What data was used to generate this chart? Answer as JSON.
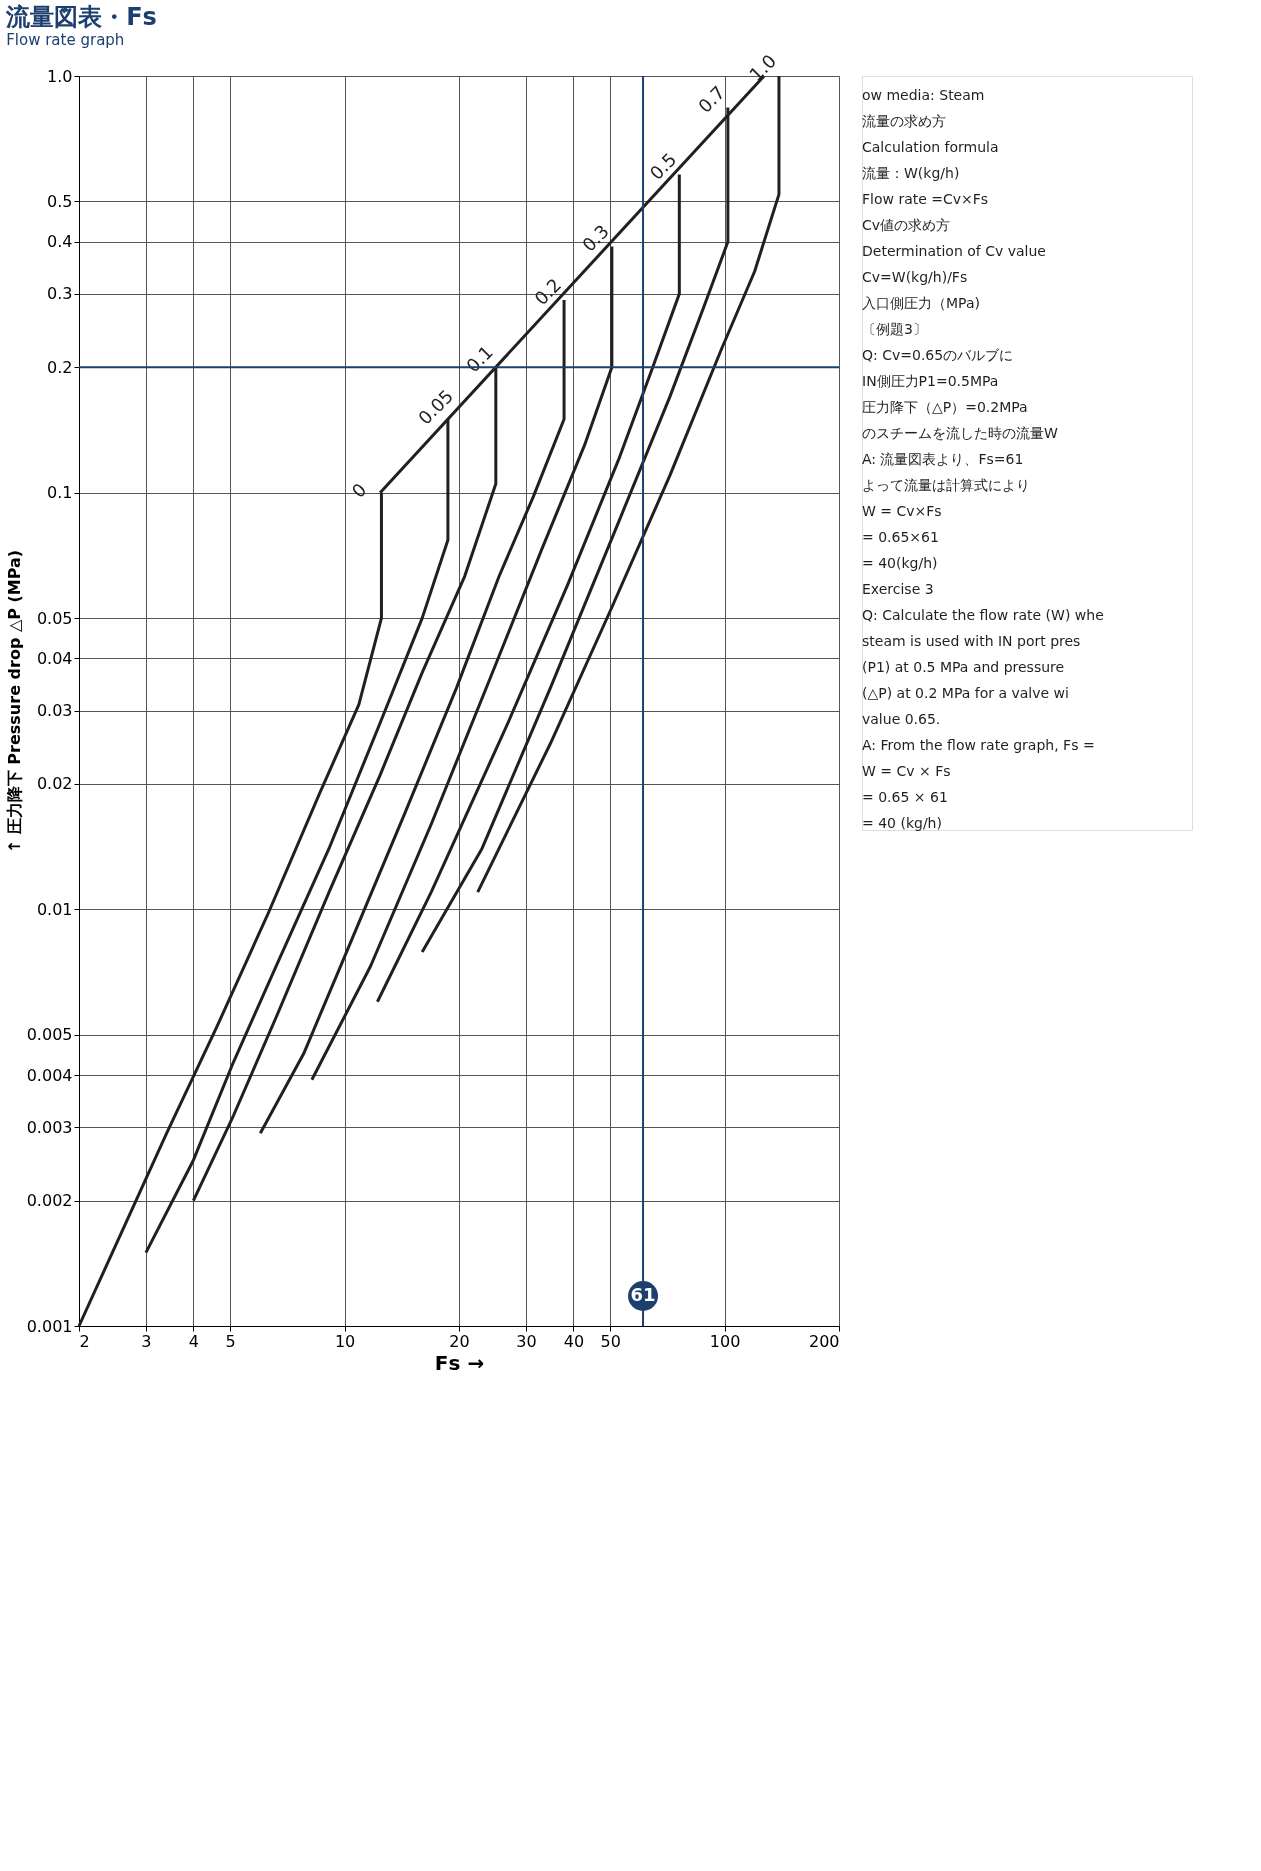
{
  "chart_data": {
    "type": "line",
    "title": "流量図表・Fs",
    "subtitle": "Flow rate graph",
    "xlabel": "Fs →",
    "ylabel": "↑ 圧力降下 Pressure drop △P (MPa)",
    "xlim": [
      2,
      200
    ],
    "ylim": [
      0.001,
      1
    ],
    "xticks": [
      2,
      3,
      4,
      5,
      10,
      20,
      30,
      40,
      50,
      100,
      200
    ],
    "yticks": [
      0.001,
      0.002,
      0.003,
      0.004,
      0.005,
      0.01,
      0.02,
      0.03,
      0.04,
      0.05,
      0.1,
      0.2,
      0.3,
      0.4,
      0.5,
      {
        "value": 1,
        "label": "1.0"
      }
    ],
    "log": "xy",
    "grid": true,
    "line_style": "solid",
    "marker": "none",
    "series": [
      {
        "name": "0",
        "color": "#231f20",
        "x": [
          12.5,
          12.5,
          10.9,
          8.6,
          6.3,
          4.6,
          3.4,
          2
        ],
        "values": [
          0.1,
          0.05,
          0.031,
          0.019,
          0.0098,
          0.0052,
          0.0029,
          0.001
        ]
      },
      {
        "name": "0.05",
        "color": "#231f20",
        "x": [
          18.7,
          18.7,
          16.0,
          12.4,
          9.1,
          6.6,
          5.1,
          4.0,
          3.0
        ],
        "values": [
          0.15,
          0.077,
          0.05,
          0.028,
          0.014,
          0.0073,
          0.0043,
          0.0025,
          0.0015
        ]
      },
      {
        "name": "0.1",
        "color": "#231f20",
        "x": [
          25,
          25,
          20.7,
          16.0,
          12.4,
          9.1,
          6.6,
          5.1,
          4.0
        ],
        "values": [
          0.2,
          0.105,
          0.063,
          0.037,
          0.021,
          0.011,
          0.0055,
          0.0032,
          0.002
        ]
      },
      {
        "name": "0.2",
        "color": "#231f20",
        "x": [
          37.8,
          37.8,
          31.4,
          25.5,
          19.7,
          14.4,
          10.0,
          7.8,
          6.0
        ],
        "values": [
          0.29,
          0.15,
          0.098,
          0.063,
          0.034,
          0.017,
          0.0077,
          0.0045,
          0.0029
        ]
      },
      {
        "name": "0.3",
        "color": "#231f20",
        "x": [
          50.5,
          50.5,
          42.8,
          33.0,
          24.2,
          16.9,
          11.7,
          8.2
        ],
        "values": [
          0.39,
          0.2,
          0.13,
          0.073,
          0.036,
          0.016,
          0.0073,
          0.0039
        ]
      },
      {
        "name": "0.5",
        "color": "#231f20",
        "x": [
          76,
          76,
          64.7,
          52.6,
          38.6,
          26.9,
          16.9,
          12.2
        ],
        "values": [
          0.58,
          0.3,
          0.2,
          0.12,
          0.06,
          0.028,
          0.011,
          0.006
        ]
      },
      {
        "name": "0.7",
        "color": "#231f20",
        "x": [
          102,
          102,
          88.3,
          71.8,
          52.6,
          34.8,
          23.0,
          16.0
        ],
        "values": [
          0.84,
          0.4,
          0.28,
          0.17,
          0.085,
          0.034,
          0.014,
          0.0079
        ]
      },
      {
        "name": "1.0",
        "color": "#231f20",
        "x": [
          139,
          139,
          120,
          97.9,
          71.8,
          50.0,
          34.8,
          22.4
        ],
        "values": [
          1.0,
          0.52,
          0.34,
          0.22,
          0.11,
          0.052,
          0.025,
          0.011
        ]
      },
      {
        "color": "#231f20",
        "x": [
          12.4,
          127
        ],
        "values": [
          0.1,
          1.0
        ]
      }
    ],
    "ref_lines": [
      {
        "axis": "x",
        "value": 61,
        "label": "61",
        "color": "#1d3f6e"
      },
      {
        "axis": "y",
        "value": 0.2,
        "color": "#1d3f6e"
      }
    ],
    "annotations": [
      "ow media: Steam",
      "流量の求め方",
      "Calculation formula",
      "流量：W(kg/h)",
      "Flow rate =Cv×Fs",
      "Cv値の求め方",
      "Determination of Cv value",
      "Cv=W(kg/h)/Fs",
      "入口側圧力（MPa)",
      "〔例題3〕",
      "Q: Cv=0.65のバルブに",
      "IN側圧力P1=0.5MPa",
      "圧力降下（△P）=0.2MPa",
      "のスチームを流した時の流量W",
      "A: 流量図表より、Fs=61",
      "よって流量は計算式により",
      "W = Cv×Fs",
      "= 0.65×61",
      "= 40(kg/h)",
      "Exercise 3",
      "Q: Calculate the flow rate (W) whe",
      "steam is used with IN port pres",
      "(P1) at 0.5 MPa and pressure",
      "(△P) at 0.2 MPa for a valve wi",
      "value 0.65.",
      "A: From the flow rate graph, Fs =",
      "W = Cv × Fs",
      "= 0.65 × 61",
      "= 40 (kg/h)"
    ]
  }
}
